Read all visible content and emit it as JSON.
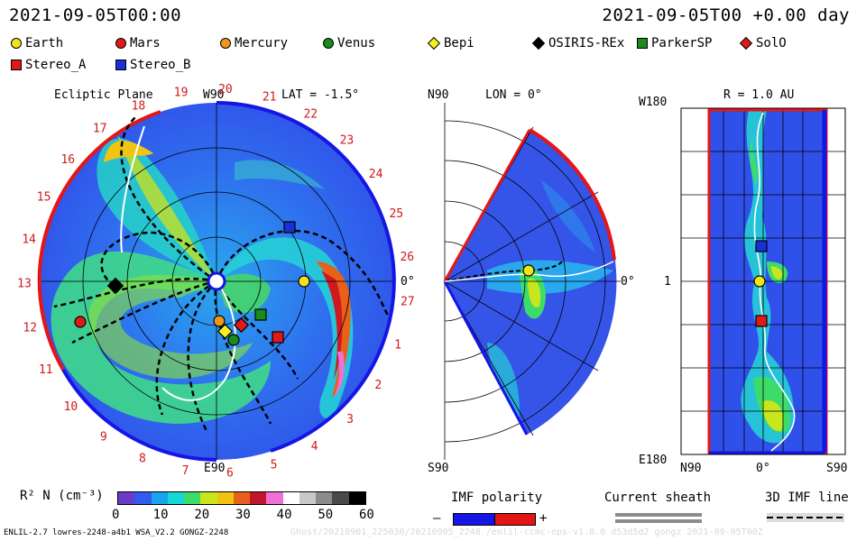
{
  "header": {
    "left_time": "2021-09-05T00:00",
    "right_time": "2021-09-05T00 +0.00 day"
  },
  "legend": [
    {
      "label": "Earth",
      "color": "#f4e21a",
      "shape": "circle"
    },
    {
      "label": "Mars",
      "color": "#e01919",
      "shape": "circle"
    },
    {
      "label": "Mercury",
      "color": "#f0961a",
      "shape": "circle"
    },
    {
      "label": "Venus",
      "color": "#1a8c1a",
      "shape": "circle"
    },
    {
      "label": "Bepi",
      "color": "#f7ee21",
      "shape": "diamond"
    },
    {
      "label": "OSIRIS-REx",
      "color": "#000000",
      "shape": "diamond"
    },
    {
      "label": "ParkerSP",
      "color": "#1a8a1a",
      "shape": "square"
    },
    {
      "label": "SolO",
      "color": "#e01919",
      "shape": "diamond"
    },
    {
      "label": "Stereo_A",
      "color": "#e01919",
      "shape": "square"
    },
    {
      "label": "Stereo_B",
      "color": "#1a2fd6",
      "shape": "square"
    }
  ],
  "ecliptic": {
    "title": "Ecliptic Plane",
    "lat": "LAT = -1.5°",
    "top_label": "W90",
    "bottom_label": "E90",
    "right_label": "0°",
    "sector_numbers": [
      "1",
      "2",
      "3",
      "4",
      "5",
      "6",
      "7",
      "8",
      "9",
      "10",
      "11",
      "12",
      "13",
      "14",
      "15",
      "16",
      "17",
      "18",
      "19",
      "20",
      "21",
      "22",
      "23",
      "24",
      "25",
      "26",
      "27"
    ]
  },
  "meridional": {
    "lon": "LON = 0°",
    "top_label": "N90",
    "bottom_label": "S90",
    "right_label": "0°"
  },
  "radial": {
    "title": "R = 1.0 AU",
    "top_left_label": "W180",
    "mid_left_label": "1",
    "bottom_left_label": "E180",
    "bottom_labels": [
      "N90",
      "0°",
      "S90"
    ]
  },
  "colorbar": {
    "label": "R² N (cm⁻³)",
    "ticks": [
      "0",
      "10",
      "20",
      "30",
      "40",
      "50",
      "60"
    ],
    "colors": [
      "#6a3cc8",
      "#2f5bef",
      "#1aa3ef",
      "#16d6d8",
      "#3ddc6a",
      "#c8e61e",
      "#f2c412",
      "#e8601a",
      "#c0182a",
      "#f070d8",
      "#ffffff",
      "#c8c8c8",
      "#8c8c8c",
      "#4a4a4a",
      "#000000"
    ]
  },
  "imf_polarity": {
    "label": "IMF polarity",
    "minus": "–",
    "plus": "+",
    "minus_color": "#1515e6",
    "plus_color": "#e61515"
  },
  "current_sheath": {
    "label": "Current sheath"
  },
  "imf_line": {
    "label": "3D IMF line"
  },
  "footer": {
    "left": "ENLIL-2.7 lowres-2248-a4b1 WSA_V2.2 GONGZ-2248",
    "right": "Ghost/20210901_225030/20210905_2248 /enlil-ccmc-ops-v1.0.0 d53d5d2 gongz 2021-09-05T00Z"
  }
}
